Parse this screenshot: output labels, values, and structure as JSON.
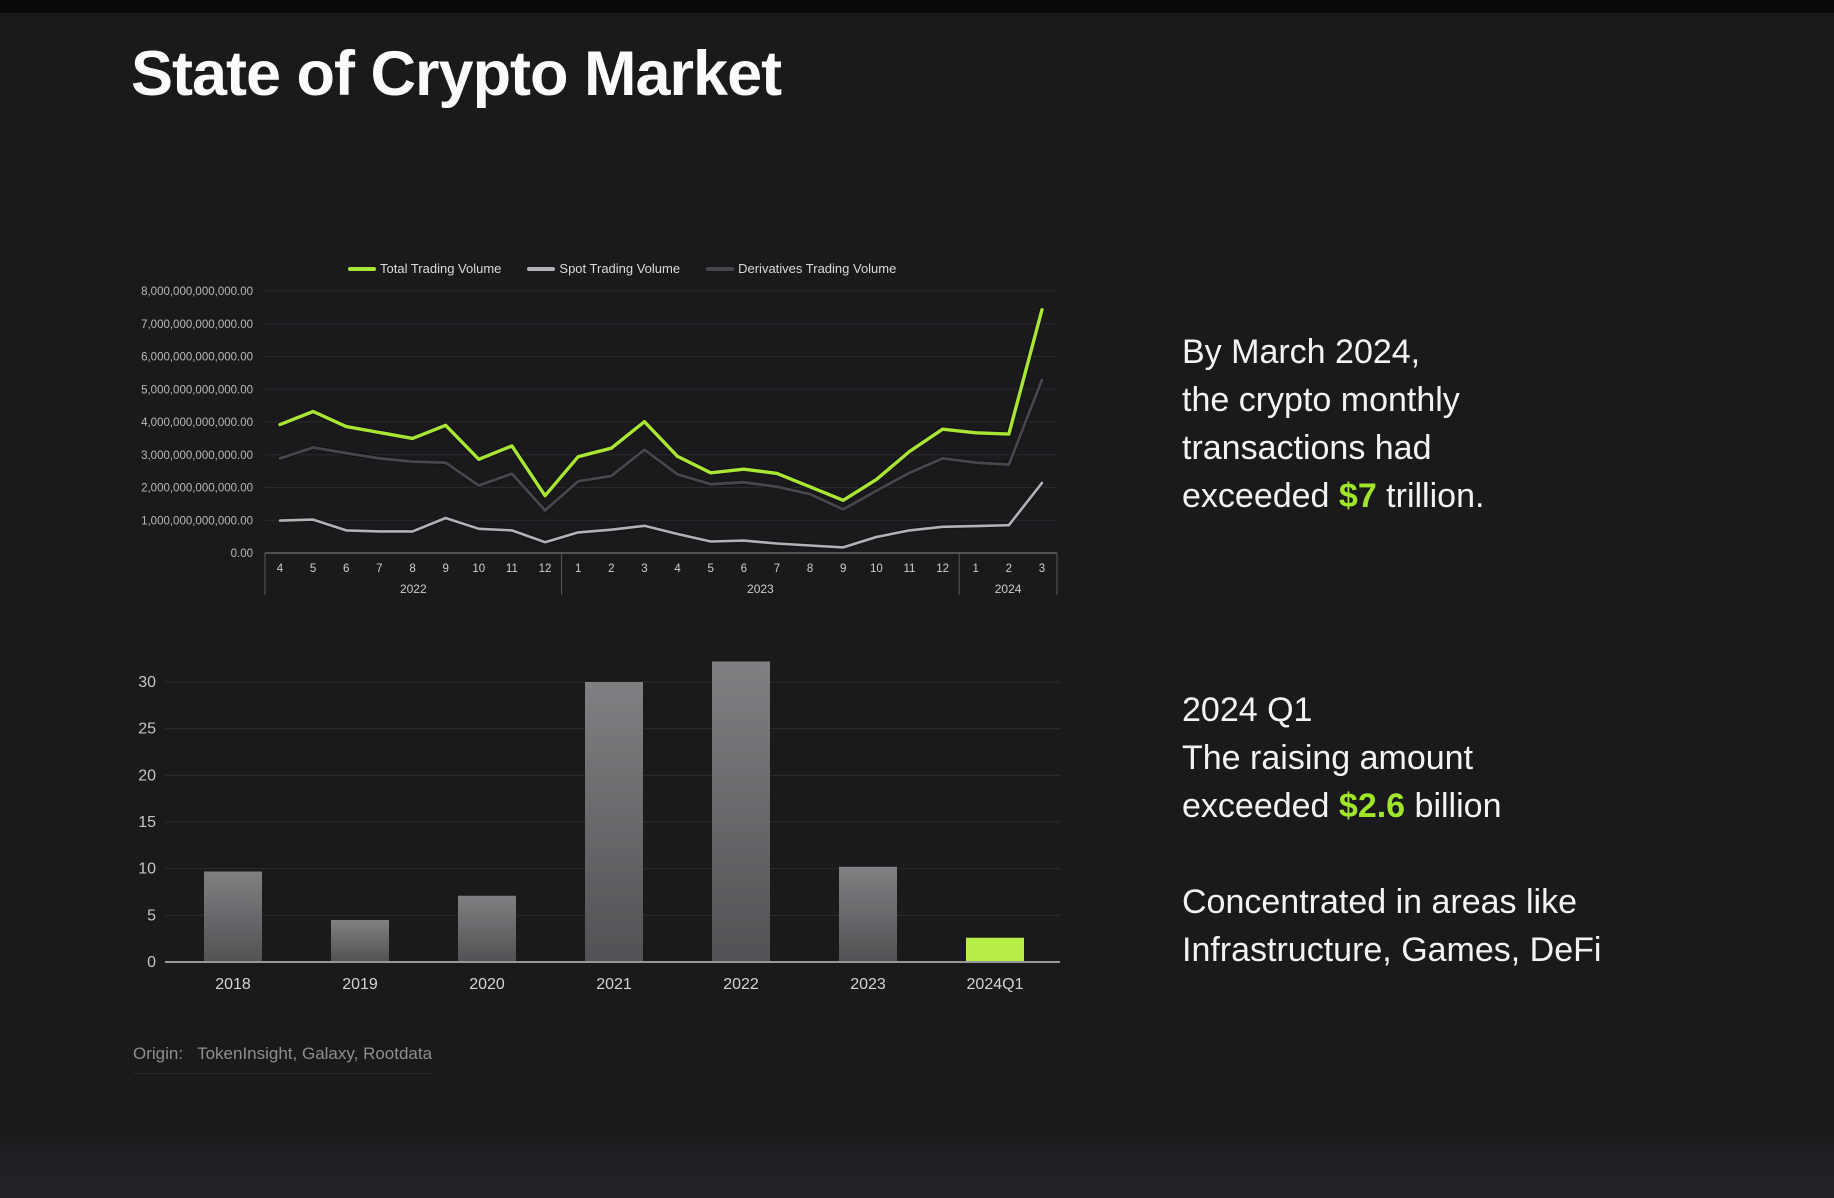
{
  "title": "State of Crypto Market",
  "accent_color": "#9fe52a",
  "insight1": {
    "line1": "By March 2024,",
    "line2": "the crypto monthly",
    "line3": "transactions had",
    "line4_pre": "exceeded ",
    "line4_accent": "$7",
    "line4_post": " trillion."
  },
  "insight2": {
    "line1": "2024 Q1",
    "line2": "The raising amount",
    "line3_pre": "exceeded ",
    "line3_accent": "$2.6",
    "line3_post": " billion",
    "line4": "Concentrated in areas like",
    "line5": "Infrastructure, Games, DeFi"
  },
  "footer": {
    "origin_label": "Origin:",
    "origin_value": "TokenInsight, Galaxy, Rootdata"
  },
  "chart_data": [
    {
      "type": "line",
      "title": "Monthly crypto trading volume, Apr 2022 - Mar 2024",
      "legend_position": "top",
      "grid": true,
      "ylim_trillions": [
        0,
        8
      ],
      "y_tick_labels": [
        "8,000,000,000,000.00",
        "7,000,000,000,000.00",
        "6,000,000,000,000.00",
        "5,000,000,000,000.00",
        "4,000,000,000,000.00",
        "3,000,000,000,000.00",
        "2,000,000,000,000.00",
        "1,000,000,000,000.00",
        "0.00"
      ],
      "x_month_labels": [
        "4",
        "5",
        "6",
        "7",
        "8",
        "9",
        "10",
        "11",
        "12",
        "1",
        "2",
        "3",
        "4",
        "5",
        "6",
        "7",
        "8",
        "9",
        "10",
        "11",
        "12",
        "1",
        "2",
        "3"
      ],
      "year_groups": [
        {
          "label": "2022",
          "months": 9
        },
        {
          "label": "2023",
          "months": 12
        },
        {
          "label": "2024",
          "months": 3
        }
      ],
      "value_unit": "USD trillion",
      "series": [
        {
          "name": "Total Trading Volume",
          "color": "#a9e634",
          "values_trillions": [
            3.92,
            4.32,
            3.86,
            3.68,
            3.5,
            3.9,
            2.86,
            3.27,
            1.75,
            2.94,
            3.2,
            4.01,
            2.95,
            2.45,
            2.56,
            2.43,
            2.02,
            1.61,
            2.24,
            3.1,
            3.78,
            3.67,
            3.63,
            7.43
          ]
        },
        {
          "name": "Spot Trading Volume",
          "color": "#b2b2b6",
          "values_trillions": [
            0.99,
            1.02,
            0.69,
            0.66,
            0.66,
            1.07,
            0.74,
            0.69,
            0.33,
            0.63,
            0.71,
            0.83,
            0.58,
            0.35,
            0.38,
            0.29,
            0.23,
            0.17,
            0.49,
            0.69,
            0.8,
            0.82,
            0.85,
            2.14
          ]
        },
        {
          "name": "Derivatives Trading Volume",
          "color": "#47474b",
          "values_trillions": [
            2.89,
            3.22,
            3.05,
            2.89,
            2.79,
            2.76,
            2.06,
            2.42,
            1.3,
            2.19,
            2.35,
            3.15,
            2.4,
            2.1,
            2.16,
            2.02,
            1.8,
            1.33,
            1.9,
            2.45,
            2.89,
            2.76,
            2.7,
            5.29
          ]
        }
      ]
    },
    {
      "type": "bar",
      "title": "Crypto fundraising amount by year",
      "categories": [
        "2018",
        "2019",
        "2020",
        "2021",
        "2022",
        "2023",
        "2024Q1"
      ],
      "values": [
        9.7,
        4.5,
        7.1,
        30,
        32.2,
        10.2,
        2.6
      ],
      "value_unit": "USD billion",
      "ylim": [
        0,
        33
      ],
      "y_ticks": [
        0,
        5,
        10,
        15,
        20,
        25,
        30
      ],
      "grid": true,
      "bar_color_top": "#808083",
      "bar_color_bottom": "#525255",
      "highlight_index": 6,
      "highlight_color": "#b7ee48"
    }
  ]
}
